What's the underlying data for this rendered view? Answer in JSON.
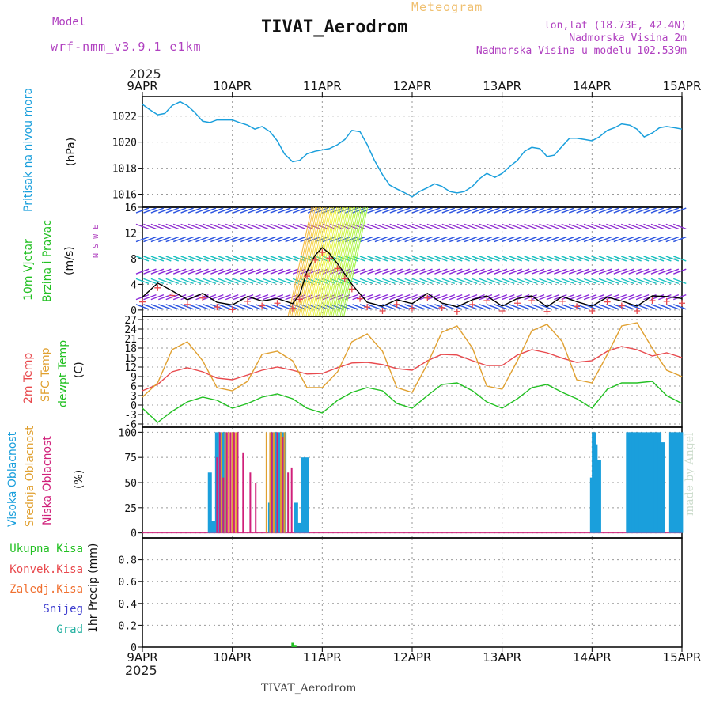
{
  "header": {
    "model_label": "Model",
    "model_name": "wrf-nmm_v3.9.1  e1km",
    "meteogram_label": "Meteogram",
    "station_title": "TIVAT_Aerodrom",
    "lonlat": "lon,lat (18.73E, 42.4N)",
    "elevation": "Nadmorska Visina 2m",
    "model_elevation": "Nadmorska Visina u modelu 102.539m",
    "year_top": "2025",
    "year_bottom": "2025",
    "footer_station": "TIVAT_Aerodrom",
    "credit": "made by Angel"
  },
  "colors": {
    "pressure": "#1a9fdc",
    "temp2m": "#e8494d",
    "sfc": "#e0a030",
    "dewpt": "#22c022",
    "high_cloud": "#1a9fdc",
    "mid_cloud": "#e0a030",
    "low_cloud": "#d0207a",
    "grid": "#999999",
    "title_purple": "#b040c0",
    "meteogram_label": "#f0c070"
  },
  "x_axis": {
    "ticks": [
      "9APR",
      "10APR",
      "11APR",
      "12APR",
      "13APR",
      "14APR",
      "15APR"
    ]
  },
  "panel_labels": {
    "pressure": {
      "name": "Pritisak na nivou mora",
      "unit": "(hPa)"
    },
    "wind": {
      "name1": "10m Vjetar",
      "name2": "Brzina i Pravac",
      "unit": "(m/s)",
      "compass": "N  S  W  E"
    },
    "temp": {
      "t2m": "2m Temp",
      "sfc": "SFC Temp",
      "dew": "dewpt Temp",
      "unit": "(C)"
    },
    "cloud": {
      "high": "Visoka Oblacnost",
      "mid": "Srednja Oblacnost",
      "low": "Niska Oblacnost",
      "unit": "(%)"
    },
    "precip": {
      "total": "Ukupna Kisa",
      "conv": "Konvek.Kisa",
      "frozen": "Zaledj.Kisa",
      "snow": "Snijeg",
      "grad": "Grad",
      "unit": "1hr Precip (mm)"
    }
  },
  "chart_data": [
    {
      "type": "line",
      "title": "Pritisak na nivou mora",
      "ylabel": "(hPa)",
      "ylim": [
        1015,
        1023.5
      ],
      "yticks": [
        1016,
        1018,
        1020,
        1022
      ],
      "grid": true,
      "x_days": [
        0,
        0.08,
        0.17,
        0.25,
        0.33,
        0.42,
        0.5,
        0.58,
        0.67,
        0.75,
        0.83,
        0.92,
        1,
        1.08,
        1.17,
        1.25,
        1.33,
        1.42,
        1.5,
        1.58,
        1.67,
        1.75,
        1.83,
        1.92,
        2,
        2.08,
        2.17,
        2.25,
        2.33,
        2.42,
        2.5,
        2.58,
        2.67,
        2.75,
        2.83,
        2.92,
        3,
        3.08,
        3.17,
        3.25,
        3.33,
        3.42,
        3.5,
        3.58,
        3.67,
        3.75,
        3.83,
        3.92,
        4,
        4.08,
        4.17,
        4.25,
        4.33,
        4.42,
        4.5,
        4.58,
        4.67,
        4.75,
        4.83,
        4.92,
        5,
        5.08,
        5.17,
        5.25,
        5.33,
        5.42,
        5.5,
        5.58,
        5.67,
        5.75,
        5.83,
        5.92,
        6
      ],
      "series": [
        {
          "name": "Pritisak",
          "values": [
            1022.9,
            1022.5,
            1022.1,
            1022.2,
            1022.8,
            1023.1,
            1022.8,
            1022.3,
            1021.6,
            1021.5,
            1021.7,
            1021.7,
            1021.7,
            1021.5,
            1021.3,
            1021.0,
            1021.2,
            1020.8,
            1020.1,
            1019.1,
            1018.5,
            1018.6,
            1019.1,
            1019.3,
            1019.4,
            1019.5,
            1019.8,
            1020.2,
            1020.9,
            1020.8,
            1019.8,
            1018.6,
            1017.5,
            1016.7,
            1016.4,
            1016.1,
            1015.8,
            1016.2,
            1016.5,
            1016.8,
            1016.6,
            1016.2,
            1016.1,
            1016.2,
            1016.6,
            1017.2,
            1017.6,
            1017.3,
            1017.6,
            1018.1,
            1018.6,
            1019.3,
            1019.6,
            1019.5,
            1018.9,
            1019.0,
            1019.7,
            1020.3,
            1020.3,
            1020.2,
            1020.1,
            1020.4,
            1020.9,
            1021.1,
            1021.4,
            1021.3,
            1021.0,
            1020.4,
            1020.7,
            1021.1,
            1021.2,
            1021.1,
            1021.0
          ]
        }
      ]
    },
    {
      "type": "line",
      "title": "10m Vjetar Brzina i Pravac",
      "ylabel": "(m/s)",
      "ylim": [
        -1,
        16
      ],
      "yticks": [
        0,
        4,
        8,
        12,
        16
      ],
      "grid": true,
      "x_days": [
        0,
        0.17,
        0.33,
        0.5,
        0.67,
        0.83,
        1,
        1.17,
        1.33,
        1.5,
        1.67,
        1.75,
        1.83,
        1.92,
        2,
        2.08,
        2.17,
        2.25,
        2.33,
        2.42,
        2.5,
        2.67,
        2.83,
        3,
        3.17,
        3.33,
        3.5,
        3.67,
        3.83,
        4,
        4.17,
        4.33,
        4.5,
        4.67,
        4.83,
        5,
        5.17,
        5.33,
        5.5,
        5.67,
        5.83,
        6
      ],
      "series": [
        {
          "name": "Brzina",
          "values": [
            2.0,
            4.2,
            3.0,
            1.6,
            2.6,
            1.2,
            0.8,
            2.1,
            1.4,
            1.8,
            1.0,
            2.4,
            6.0,
            8.5,
            9.7,
            8.8,
            7.2,
            5.6,
            4.0,
            2.5,
            1.2,
            0.6,
            1.6,
            1.0,
            2.6,
            1.1,
            0.5,
            1.6,
            2.2,
            0.6,
            1.8,
            2.2,
            0.5,
            2.1,
            1.3,
            0.6,
            2.0,
            1.4,
            0.6,
            2.2,
            2.1,
            1.8
          ]
        }
      ]
    },
    {
      "type": "line",
      "title": "2m Temp / SFC Temp / dewpt Temp",
      "ylabel": "(C)",
      "ylim": [
        -7,
        28
      ],
      "yticks": [
        -6,
        -3,
        0,
        3,
        6,
        9,
        12,
        15,
        18,
        21,
        24,
        27
      ],
      "grid": true,
      "x_days": [
        0,
        0.17,
        0.33,
        0.5,
        0.67,
        0.83,
        1,
        1.17,
        1.33,
        1.5,
        1.67,
        1.83,
        2,
        2.17,
        2.33,
        2.5,
        2.67,
        2.83,
        3,
        3.17,
        3.33,
        3.5,
        3.67,
        3.83,
        4,
        4.17,
        4.33,
        4.5,
        4.67,
        4.83,
        5,
        5.17,
        5.33,
        5.5,
        5.67,
        5.83,
        6
      ],
      "series": [
        {
          "name": "2m Temp",
          "values": [
            4.5,
            6.5,
            10.5,
            11.8,
            10.5,
            8.5,
            8.0,
            9.5,
            11.0,
            12.0,
            11.0,
            9.8,
            10.0,
            11.8,
            13.3,
            13.5,
            12.8,
            11.5,
            11.0,
            14.0,
            16.0,
            15.8,
            14.0,
            12.5,
            12.5,
            15.8,
            17.5,
            16.5,
            14.8,
            13.5,
            14.0,
            17.0,
            18.5,
            17.5,
            15.5,
            16.5,
            15.0
          ]
        },
        {
          "name": "SFC Temp",
          "values": [
            2.5,
            7.0,
            17.5,
            20.0,
            14.0,
            5.5,
            4.5,
            7.5,
            16.0,
            17.0,
            14.0,
            5.5,
            5.5,
            10.5,
            20.0,
            22.5,
            17.0,
            5.5,
            4.0,
            13.0,
            23.0,
            25.0,
            18.0,
            6.0,
            5.0,
            14.0,
            23.5,
            25.5,
            20.0,
            8.0,
            7.0,
            16.0,
            25.0,
            26.0,
            18.0,
            11.0,
            9.0
          ]
        },
        {
          "name": "dewpt Temp",
          "values": [
            -1.0,
            -5.5,
            -2.0,
            1.0,
            2.5,
            1.5,
            -1.0,
            0.5,
            2.5,
            3.5,
            2.0,
            -1.0,
            -2.5,
            1.5,
            4.0,
            5.5,
            4.5,
            0.5,
            -1.0,
            3.0,
            6.5,
            7.0,
            4.5,
            1.0,
            -1.0,
            2.0,
            5.5,
            6.5,
            4.0,
            2.0,
            -1.0,
            5.0,
            7.0,
            7.0,
            7.5,
            3.0,
            0.5
          ]
        }
      ]
    },
    {
      "type": "bar",
      "title": "Visoka / Srednja / Niska Oblacnost",
      "ylabel": "(%)",
      "ylim": [
        -5,
        105
      ],
      "yticks": [
        0,
        25,
        50,
        75,
        100
      ],
      "grid": true,
      "series": [
        {
          "name": "Visoka Oblacnost",
          "x_days": [
            0.75,
            0.79,
            0.83,
            0.88,
            0.92,
            1.42,
            1.46,
            1.5,
            1.54,
            1.58,
            1.71,
            1.75,
            1.79,
            1.83,
            5.0,
            5.02,
            5.04,
            5.08,
            5.12,
            5.4,
            5.43,
            5.46,
            5.5,
            5.54,
            5.58,
            5.62,
            5.67,
            5.71,
            5.75,
            5.79,
            5.88,
            5.92,
            5.96,
            5.99
          ],
          "values": [
            60,
            12,
            100,
            100,
            100,
            30,
            100,
            100,
            100,
            100,
            30,
            10,
            75,
            75,
            55,
            100,
            88,
            72,
            0,
            100,
            100,
            100,
            100,
            100,
            100,
            100,
            100,
            100,
            100,
            90,
            100,
            100,
            100,
            100
          ]
        },
        {
          "name": "Srednja Oblacnost",
          "x_days": [
            0.88,
            0.92,
            0.96,
            1.0,
            1.04,
            1.38,
            1.42,
            1.46,
            1.5,
            1.54,
            1.58
          ],
          "values": [
            100,
            100,
            100,
            100,
            100,
            100,
            100,
            100,
            100,
            100,
            100
          ]
        },
        {
          "name": "Niska Oblacnost",
          "x_days": [
            0.83,
            0.86,
            0.9,
            0.94,
            0.98,
            1.02,
            1.06,
            1.12,
            1.2,
            1.26,
            1.44,
            1.5,
            1.56,
            1.62,
            1.66
          ],
          "values": [
            75,
            100,
            55,
            100,
            100,
            100,
            100,
            80,
            60,
            50,
            100,
            100,
            95,
            60,
            65
          ]
        }
      ]
    },
    {
      "type": "bar",
      "title": "1hr Precip",
      "ylabel": "1hr Precip (mm)",
      "ylim": [
        0,
        1.0
      ],
      "yticks": [
        0,
        0.2,
        0.4,
        0.6,
        0.8
      ],
      "grid": true,
      "series": [
        {
          "name": "Ukupna Kisa",
          "x_days": [
            1.67,
            1.7
          ],
          "values": [
            0.04,
            0.02
          ]
        },
        {
          "name": "Konvek.Kisa",
          "x_days": [],
          "values": []
        },
        {
          "name": "Zaledj.Kisa",
          "x_days": [],
          "values": []
        },
        {
          "name": "Snijeg",
          "x_days": [],
          "values": []
        },
        {
          "name": "Grad",
          "x_days": [],
          "values": []
        }
      ]
    }
  ]
}
